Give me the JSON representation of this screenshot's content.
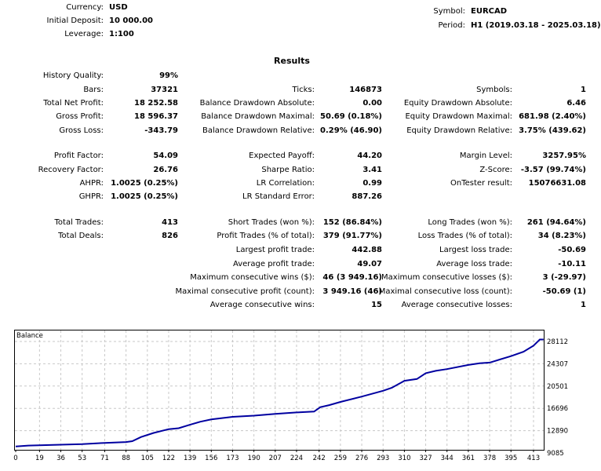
{
  "header": {
    "left": [
      {
        "label": "Currency:",
        "value": "USD"
      },
      {
        "label": "Initial Deposit:",
        "value": "10 000.00"
      },
      {
        "label": "Leverage:",
        "value": "1:100"
      }
    ],
    "right": [
      {
        "label": "Symbol:",
        "value": "EURCAD"
      },
      {
        "label": "Period:",
        "value": "H1 (2019.03.18 - 2025.03.18)"
      }
    ]
  },
  "results": {
    "title": "Results",
    "rows": [
      [
        {
          "label": "History Quality:",
          "value": "99%"
        },
        null,
        null
      ],
      [
        {
          "label": "Bars:",
          "value": "37321"
        },
        {
          "label": "Ticks:",
          "value": "146873"
        },
        {
          "label": "Symbols:",
          "value": "1"
        }
      ],
      [
        {
          "label": "Total Net Profit:",
          "value": "18 252.58"
        },
        {
          "label": "Balance Drawdown Absolute:",
          "value": "0.00"
        },
        {
          "label": "Equity Drawdown Absolute:",
          "value": "6.46"
        }
      ],
      [
        {
          "label": "Gross Profit:",
          "value": "18 596.37"
        },
        {
          "label": "Balance Drawdown Maximal:",
          "value": "50.69 (0.18%)"
        },
        {
          "label": "Equity Drawdown Maximal:",
          "value": "681.98 (2.40%)"
        }
      ],
      [
        {
          "label": "Gross Loss:",
          "value": "-343.79"
        },
        {
          "label": "Balance Drawdown Relative:",
          "value": "0.29% (46.90)"
        },
        {
          "label": "Equity Drawdown Relative:",
          "value": "3.75% (439.62)"
        }
      ],
      [
        {
          "label": "Profit Factor:",
          "value": "54.09"
        },
        {
          "label": "Expected Payoff:",
          "value": "44.20"
        },
        {
          "label": "Margin Level:",
          "value": "3257.95%"
        }
      ],
      [
        {
          "label": "Recovery Factor:",
          "value": "26.76"
        },
        {
          "label": "Sharpe Ratio:",
          "value": "3.41"
        },
        {
          "label": "Z-Score:",
          "value": "-3.57 (99.74%)"
        }
      ],
      [
        {
          "label": "AHPR:",
          "value": "1.0025 (0.25%)"
        },
        {
          "label": "LR Correlation:",
          "value": "0.99"
        },
        {
          "label": "OnTester result:",
          "value": "15076631.08"
        }
      ],
      [
        {
          "label": "GHPR:",
          "value": "1.0025 (0.25%)"
        },
        {
          "label": "LR Standard Error:",
          "value": "887.26"
        },
        null
      ],
      [
        {
          "label": "Total Trades:",
          "value": "413"
        },
        {
          "label": "Short Trades (won %):",
          "value": "152 (86.84%)"
        },
        {
          "label": "Long Trades (won %):",
          "value": "261 (94.64%)"
        }
      ],
      [
        {
          "label": "Total Deals:",
          "value": "826"
        },
        {
          "label": "Profit Trades (% of total):",
          "value": "379 (91.77%)"
        },
        {
          "label": "Loss Trades (% of total):",
          "value": "34 (8.23%)"
        }
      ],
      [
        null,
        {
          "label": "Largest profit trade:",
          "value": "442.88"
        },
        {
          "label": "Largest loss trade:",
          "value": "-50.69"
        }
      ],
      [
        null,
        {
          "label": "Average profit trade:",
          "value": "49.07"
        },
        {
          "label": "Average loss trade:",
          "value": "-10.11"
        }
      ],
      [
        null,
        {
          "label": "Maximum consecutive wins ($):",
          "value": "46 (3 949.16)"
        },
        {
          "label": "Maximum consecutive losses ($):",
          "value": "3 (-29.97)"
        }
      ],
      [
        null,
        {
          "label": "Maximal consecutive profit (count):",
          "value": "3 949.16 (46)"
        },
        {
          "label": "Maximal consecutive loss (count):",
          "value": "-50.69 (1)"
        }
      ],
      [
        null,
        {
          "label": "Average consecutive wins:",
          "value": "15"
        },
        {
          "label": "Average consecutive losses:",
          "value": "1"
        }
      ]
    ]
  },
  "chart_data": {
    "type": "line",
    "title": "Balance",
    "x_ticks": [
      "0",
      "19",
      "36",
      "53",
      "71",
      "88",
      "105",
      "122",
      "139",
      "156",
      "173",
      "190",
      "207",
      "224",
      "242",
      "259",
      "276",
      "293",
      "310",
      "327",
      "344",
      "361",
      "378",
      "395",
      "413"
    ],
    "y_ticks": [
      "28112",
      "24307",
      "20501",
      "16696",
      "12890",
      "9085"
    ],
    "xlim": [
      0,
      421
    ],
    "ylim": [
      9085,
      29000
    ],
    "grid": true,
    "line_color": "#0000a0",
    "series": [
      {
        "x": [
          0,
          10,
          30,
          53,
          71,
          88,
          93,
          100,
          110,
          122,
          130,
          139,
          147,
          156,
          173,
          190,
          207,
          224,
          238,
          243,
          250,
          259,
          276,
          293,
          300,
          310,
          320,
          327,
          335,
          344,
          361,
          370,
          378,
          395,
          405,
          413,
          418,
          421
        ],
        "y": [
          10200,
          10350,
          10450,
          10600,
          10800,
          10950,
          11100,
          11800,
          12500,
          13150,
          13300,
          13900,
          14400,
          14800,
          15250,
          15450,
          15750,
          16000,
          16150,
          16900,
          17250,
          17800,
          18700,
          19700,
          20200,
          21400,
          21700,
          22700,
          23100,
          23400,
          24100,
          24400,
          24500,
          25600,
          26350,
          27400,
          28450,
          28450
        ]
      }
    ]
  }
}
